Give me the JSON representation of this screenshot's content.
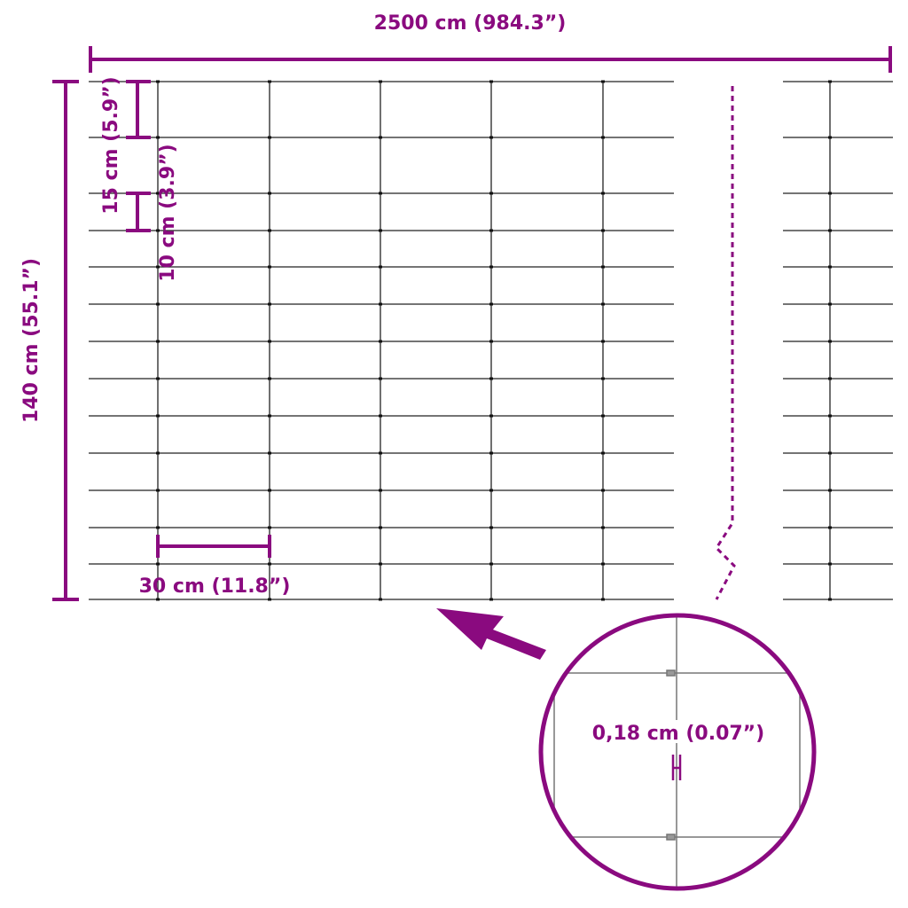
{
  "dimensions": {
    "length": "2500 cm (984.3”)",
    "height": "140 cm (55.1”)",
    "top_spacing": "15 cm (5.9”)",
    "lower_spacing": "10 cm (3.9”)",
    "post_spacing": "30 cm (11.8”)",
    "wire_diameter": "0,18 cm (0.07”)"
  },
  "colors": {
    "accent": "#8a0a7f",
    "wire": "#222222"
  }
}
